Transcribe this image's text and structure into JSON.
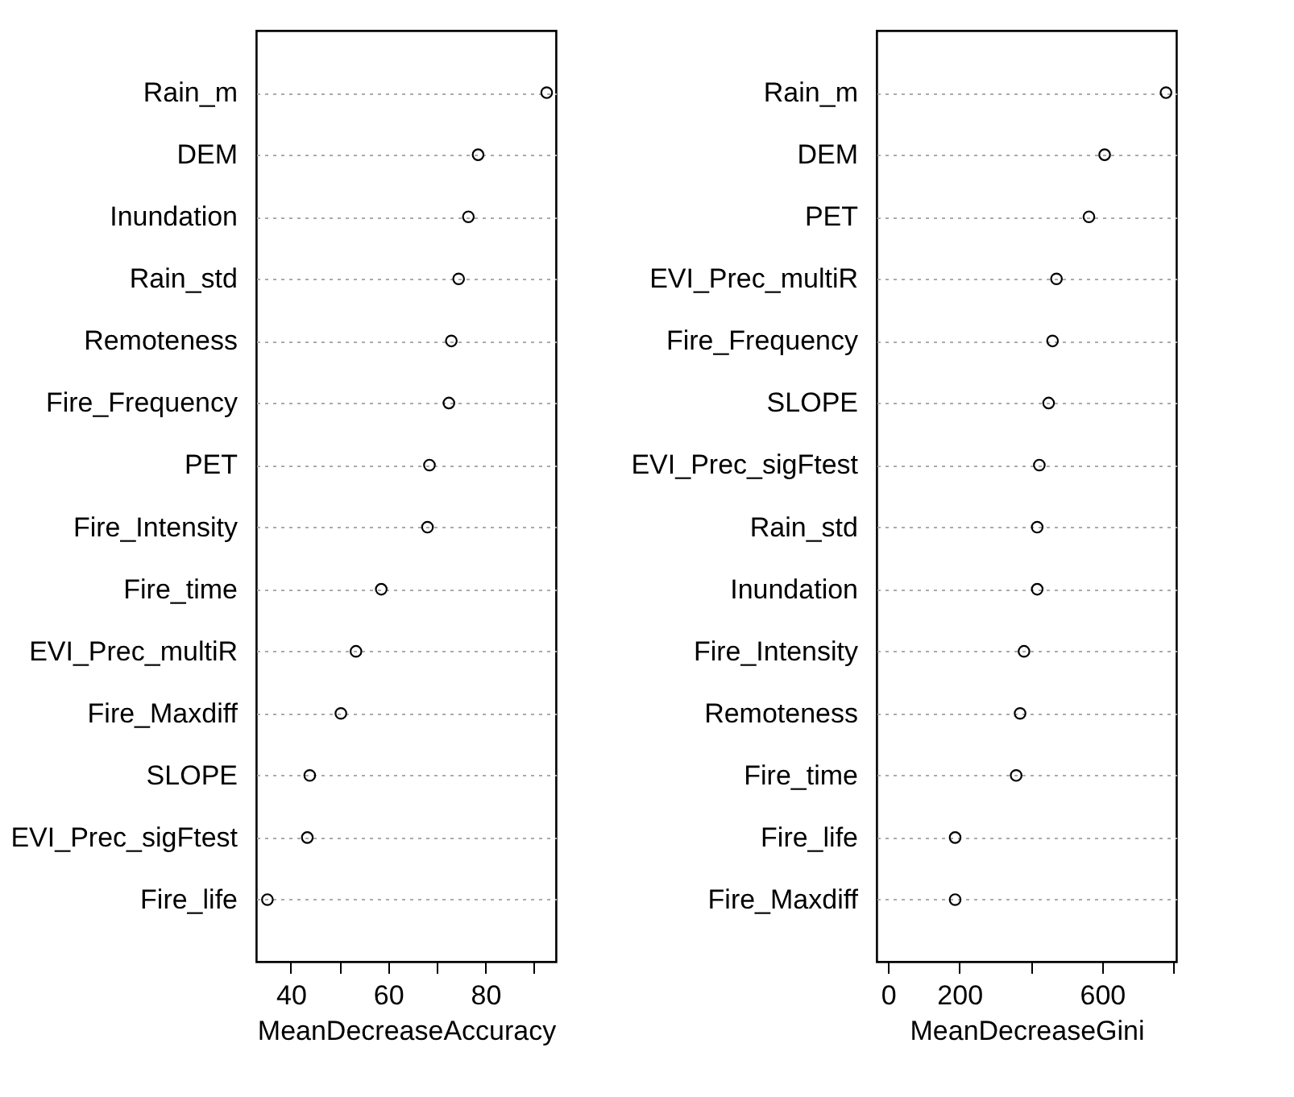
{
  "chart_data": [
    {
      "type": "scatter",
      "orientation": "horizontal",
      "categories": [
        "Rain_m",
        "DEM",
        "Inundation",
        "Rain_std",
        "Remoteness",
        "Fire_Frequency",
        "PET",
        "Fire_Intensity",
        "Fire_time",
        "EVI_Prec_multiR",
        "Fire_Maxdiff",
        "SLOPE",
        "EVI_Prec_sigFtest",
        "Fire_life"
      ],
      "series": [
        {
          "color": "#000000",
          "values": [
            92.6,
            78.5,
            76.5,
            74.5,
            73.0,
            72.5,
            68.5,
            68.1,
            58.6,
            53.4,
            50.3,
            43.9,
            43.4,
            35.2
          ]
        }
      ],
      "xlim": [
        32.9,
        94.5
      ],
      "xticks": [
        40,
        {
          "value": 50,
          "label": null
        },
        60,
        {
          "value": 70,
          "label": null
        },
        80,
        {
          "value": 90,
          "label": null
        }
      ],
      "xlabel": "MeanDecreaseAccuracy",
      "grid": "y",
      "marker": "circle"
    },
    {
      "type": "scatter",
      "orientation": "horizontal",
      "categories": [
        "Rain_m",
        "DEM",
        "PET",
        "EVI_Prec_multiR",
        "Fire_Frequency",
        "SLOPE",
        "EVI_Prec_sigFtest",
        "Rain_std",
        "Inundation",
        "Fire_Intensity",
        "Remoteness",
        "Fire_time",
        "Fire_life",
        "Fire_Maxdiff"
      ],
      "series": [
        {
          "color": "#000000",
          "values": [
            779,
            607,
            563,
            472,
            461,
            450,
            424,
            418,
            418,
            381,
            370,
            359,
            188,
            188
          ]
        }
      ],
      "xlim": [
        -32,
        808
      ],
      "xticks": [
        0,
        200,
        {
          "value": 400,
          "label": null
        },
        600,
        {
          "value": 800,
          "label": null
        }
      ],
      "xlabel": "MeanDecreaseGini",
      "grid": "y",
      "marker": "circle"
    }
  ]
}
